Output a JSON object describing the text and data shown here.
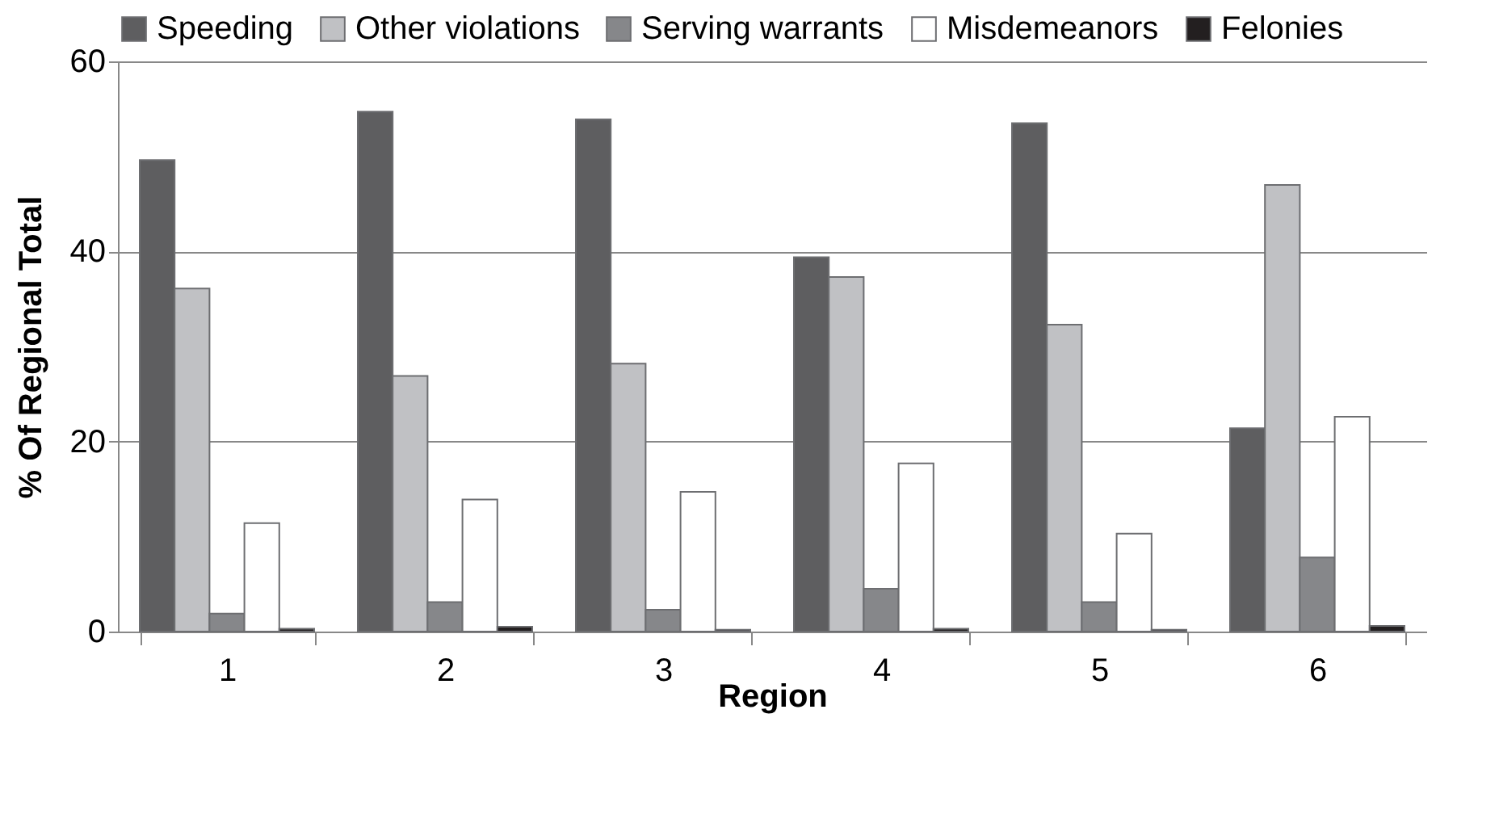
{
  "chart_data": {
    "type": "bar",
    "xlabel": "Region",
    "ylabel": "% Of Regional Total",
    "categories": [
      "1",
      "2",
      "3",
      "4",
      "5",
      "6"
    ],
    "series": [
      {
        "name": "Speeding",
        "color": "#5e5e60",
        "values": [
          49.6,
          54.7,
          53.9,
          39.4,
          53.5,
          21.4
        ]
      },
      {
        "name": "Other violations",
        "color": "#c0c1c4",
        "values": [
          36.1,
          26.9,
          28.2,
          37.3,
          32.3,
          47.0
        ]
      },
      {
        "name": "Serving warrants",
        "color": "#86878a",
        "values": [
          1.9,
          3.1,
          2.3,
          4.5,
          3.1,
          7.8
        ]
      },
      {
        "name": "Misdemeanors",
        "color": "#ffffff",
        "values": [
          11.4,
          13.9,
          14.7,
          17.7,
          10.3,
          22.6
        ]
      },
      {
        "name": "Felonies",
        "color": "#231f20",
        "values": [
          0.3,
          0.5,
          0.2,
          0.3,
          0.2,
          0.6
        ]
      }
    ],
    "ylim": [
      0,
      60
    ],
    "yticks": [
      0,
      20,
      40,
      60
    ],
    "grid": "y",
    "legend": "top"
  }
}
